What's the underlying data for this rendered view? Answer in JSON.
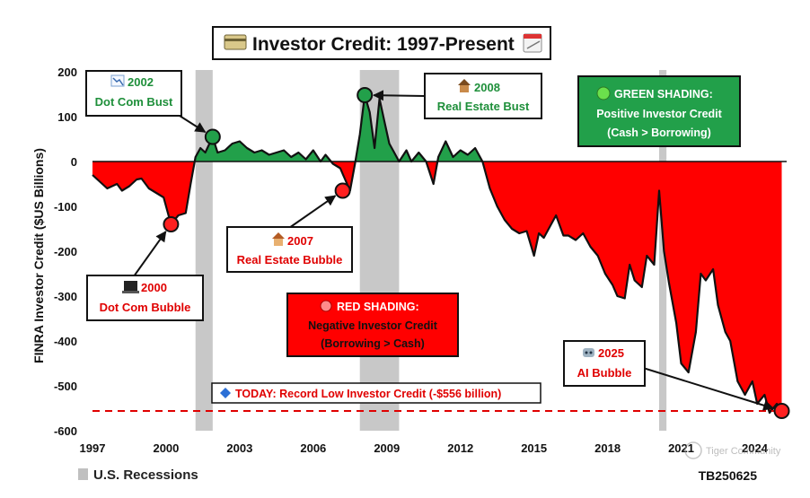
{
  "chart_data": {
    "type": "area",
    "title": "Investor Credit: 1997-Present",
    "ylabel": "FINRA Investor Credit ($US Billions)",
    "xlabel": "",
    "xlim": [
      1997,
      2025.3
    ],
    "ylim": [
      -600,
      200
    ],
    "x_ticks": [
      1997,
      2000,
      2003,
      2006,
      2009,
      2012,
      2015,
      2018,
      2021,
      2024
    ],
    "x_tick_labels": [
      "1997",
      "2000",
      "2003",
      "2006",
      "2009",
      "2012",
      "2015",
      "2018",
      "2021",
      "2024"
    ],
    "y_ticks": [
      200,
      100,
      0,
      -100,
      -200,
      -300,
      -400,
      -500,
      -600
    ],
    "y_tick_labels": [
      "200",
      "100",
      "0",
      "-100",
      "-200",
      "-300",
      "-400",
      "-500",
      "-600"
    ],
    "grid": false,
    "positive_color": "#22a04a",
    "negative_color": "#ff0000",
    "recession_color": "#c8c8c8",
    "recessions": [
      [
        2001.2,
        2001.9
      ],
      [
        2007.9,
        2009.5
      ],
      [
        2020.1,
        2020.4
      ]
    ],
    "series": [
      {
        "x": [
          1997.0,
          1997.3,
          1997.6,
          1998.0,
          1998.2,
          1998.5,
          1998.8,
          1999.0,
          1999.3,
          1999.6,
          1999.9,
          2000.2,
          2000.5,
          2000.8,
          2001.0,
          2001.2,
          2001.4,
          2001.6,
          2001.9,
          2002.1,
          2002.4,
          2002.7,
          2003.0,
          2003.3,
          2003.6,
          2003.9,
          2004.2,
          2004.5,
          2004.8,
          2005.1,
          2005.4,
          2005.7,
          2006.0,
          2006.3,
          2006.5,
          2006.8,
          2007.1,
          2007.3,
          2007.5,
          2007.7,
          2007.9,
          2008.1,
          2008.3,
          2008.5,
          2008.7,
          2008.9,
          2009.1,
          2009.3,
          2009.5,
          2009.8,
          2010.0,
          2010.3,
          2010.6,
          2010.9,
          2011.1,
          2011.4,
          2011.7,
          2012.0,
          2012.3,
          2012.6,
          2012.9,
          2013.2,
          2013.5,
          2013.8,
          2014.1,
          2014.4,
          2014.7,
          2015.0,
          2015.2,
          2015.4,
          2015.6,
          2015.9,
          2016.2,
          2016.4,
          2016.7,
          2017.0,
          2017.3,
          2017.6,
          2017.9,
          2018.2,
          2018.4,
          2018.7,
          2018.9,
          2019.1,
          2019.4,
          2019.6,
          2019.9,
          2020.1,
          2020.3,
          2020.5,
          2020.8,
          2021.0,
          2021.3,
          2021.6,
          2021.8,
          2022.0,
          2022.3,
          2022.5,
          2022.8,
          2023.0,
          2023.3,
          2023.6,
          2023.9,
          2024.1,
          2024.4,
          2024.6,
          2024.9,
          2025.1
        ],
        "y": [
          -30,
          -45,
          -60,
          -50,
          -65,
          -55,
          -40,
          -38,
          -60,
          -70,
          -80,
          -140,
          -120,
          -115,
          -50,
          10,
          30,
          20,
          55,
          20,
          25,
          40,
          45,
          30,
          20,
          25,
          15,
          20,
          25,
          10,
          20,
          5,
          25,
          0,
          15,
          -5,
          -15,
          -40,
          -65,
          -5,
          60,
          148,
          110,
          30,
          140,
          90,
          40,
          20,
          0,
          25,
          0,
          20,
          0,
          -50,
          10,
          45,
          10,
          25,
          15,
          30,
          0,
          -60,
          -100,
          -130,
          -150,
          -160,
          -155,
          -210,
          -160,
          -170,
          -150,
          -120,
          -165,
          -165,
          -175,
          -160,
          -190,
          -210,
          -250,
          -275,
          -300,
          -305,
          -230,
          -265,
          -280,
          -210,
          -230,
          -65,
          -200,
          -270,
          -360,
          -450,
          -470,
          -380,
          -250,
          -265,
          -240,
          -320,
          -380,
          -400,
          -490,
          -520,
          -490,
          -540,
          -520,
          -560,
          -540,
          -556
        ]
      }
    ],
    "markers": [
      {
        "label": "2000",
        "x": 2000.2,
        "y": -140,
        "color": "#ff2020"
      },
      {
        "label": "2002",
        "x": 2001.9,
        "y": 55,
        "color": "#22a04a"
      },
      {
        "label": "2007",
        "x": 2007.2,
        "y": -65,
        "color": "#ff2020"
      },
      {
        "label": "2008",
        "x": 2008.1,
        "y": 148,
        "color": "#22a04a"
      },
      {
        "label": "2025",
        "x": 2025.1,
        "y": -556,
        "color": "#ff2020"
      }
    ],
    "reference_line": {
      "y": -556,
      "color": "#e00000"
    },
    "annotations": [
      {
        "year": "2002",
        "text": "Dot Com Bust",
        "style": "green",
        "icon": "chart-down-icon"
      },
      {
        "year": "2000",
        "text": "Dot Com Bubble",
        "style": "red",
        "icon": "computer-icon"
      },
      {
        "year": "2007",
        "text": "Real Estate Bubble",
        "style": "red",
        "icon": "house-icon"
      },
      {
        "year": "2008",
        "text": "Real Estate Bust",
        "style": "green",
        "icon": "house-icon"
      },
      {
        "year": "2025",
        "text": "AI Bubble",
        "style": "red",
        "icon": "robot-icon"
      }
    ],
    "green_box": {
      "line1": "GREEN SHADING:",
      "line2": "Positive Investor Credit",
      "line3": "(Cash > Borrowing)",
      "icon": "green-circle-icon"
    },
    "red_box": {
      "line1": "RED SHADING:",
      "line2": "Negative Investor Credit",
      "line3": "(Borrowing > Cash)",
      "icon": "red-circle-icon"
    },
    "today_note": {
      "text": "TODAY: Record Low Investor Credit (-$556 billion)",
      "icon": "blue-diamond-icon"
    },
    "legend": {
      "text": "U.S. Recessions",
      "placement": "bottom-left"
    },
    "source": "TB250625",
    "watermark": "Tiger Community"
  }
}
